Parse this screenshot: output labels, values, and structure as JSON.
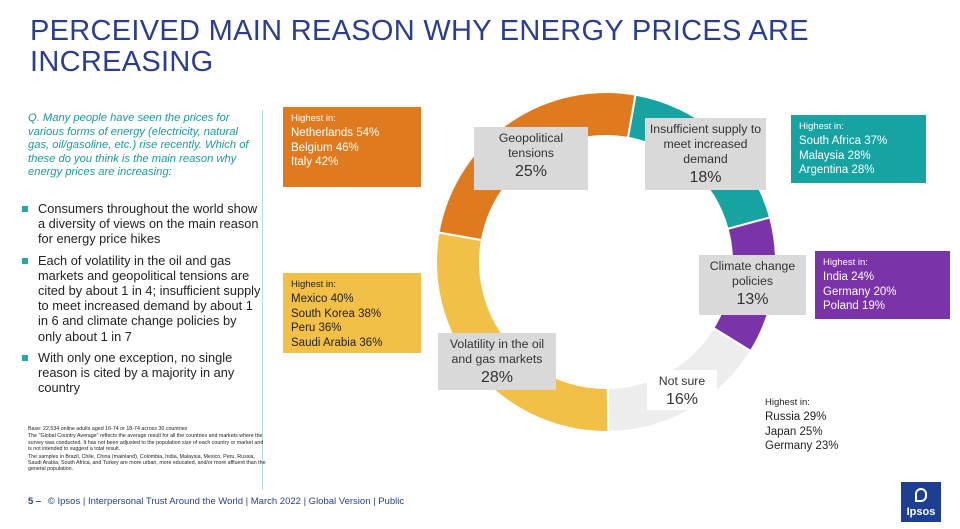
{
  "title": "PERCEIVED MAIN REASON WHY ENERGY PRICES ARE INCREASING",
  "question": "Q. Many people have seen the prices for various forms of energy (electricity, natural gas, oil/gasoline, etc.) rise recently. Which of these do you think is the main reason why energy prices are increasing:",
  "bullets": [
    "Consumers throughout the world show a diversity of views on the main reason for energy price hikes",
    "Each of volatility in the oil and gas markets and geopolitical tensions are cited by about 1 in 4; insufficient supply to meet increased demand by about 1 in 6 and climate change policies by only about 1 in 7",
    "With only one exception, no single reason is cited by a majority in any country"
  ],
  "base_notes": [
    "Base: 22,534 online adults aged 16-74 or 18-74 across 30 countries",
    "The \"Global Country Average\" reflects the average result for all the countries and markets where the survey was conducted. It has not been adjusted to the population size of each country or market and is not intended to suggest a total result.",
    "The samples in Brazil, Chile, China (mainland), Colombia, India, Malaysia, Mexico, Peru, Russia, Saudi Arabia, South Africa, and Turkey are more urban, more educated, and/or more affluent than the general population."
  ],
  "footer": {
    "page": "5 –",
    "text": "© Ipsos | Interpersonal Trust Around the World | March 2022 | Global Version | Public"
  },
  "logo_text": "Ipsos",
  "highest_in_label": "Highest in:",
  "highlights": {
    "geopolitical": [
      "Netherlands 54%",
      "Belgium 46%",
      "Italy 42%"
    ],
    "volatility": [
      "Mexico 40%",
      "South Korea 38%",
      "Peru 36%",
      "Saudi Arabia 36%"
    ],
    "insufficient": [
      "South Africa 37%",
      "Malaysia 28%",
      "Argentina 28%"
    ],
    "climate": [
      "India 24%",
      "Germany 20%",
      "Poland 19%"
    ],
    "not_sure": [
      "Russia 29%",
      "Japan 25%",
      "Germany 23%"
    ]
  },
  "chart_data": {
    "type": "pie",
    "donut": true,
    "start_angle_deg": 10,
    "categories": [
      "Insufficient supply to meet increased demand",
      "Climate change policies",
      "Not sure",
      "Volatility in the oil and gas markets",
      "Geopolitical tensions"
    ],
    "values": [
      18,
      13,
      16,
      28,
      25
    ],
    "value_labels": [
      "18%",
      "13%",
      "16%",
      "28%",
      "25%"
    ],
    "colors": [
      "#18a3a3",
      "#7a33a8",
      "#ededed",
      "#f2c047",
      "#e07a1f"
    ]
  }
}
